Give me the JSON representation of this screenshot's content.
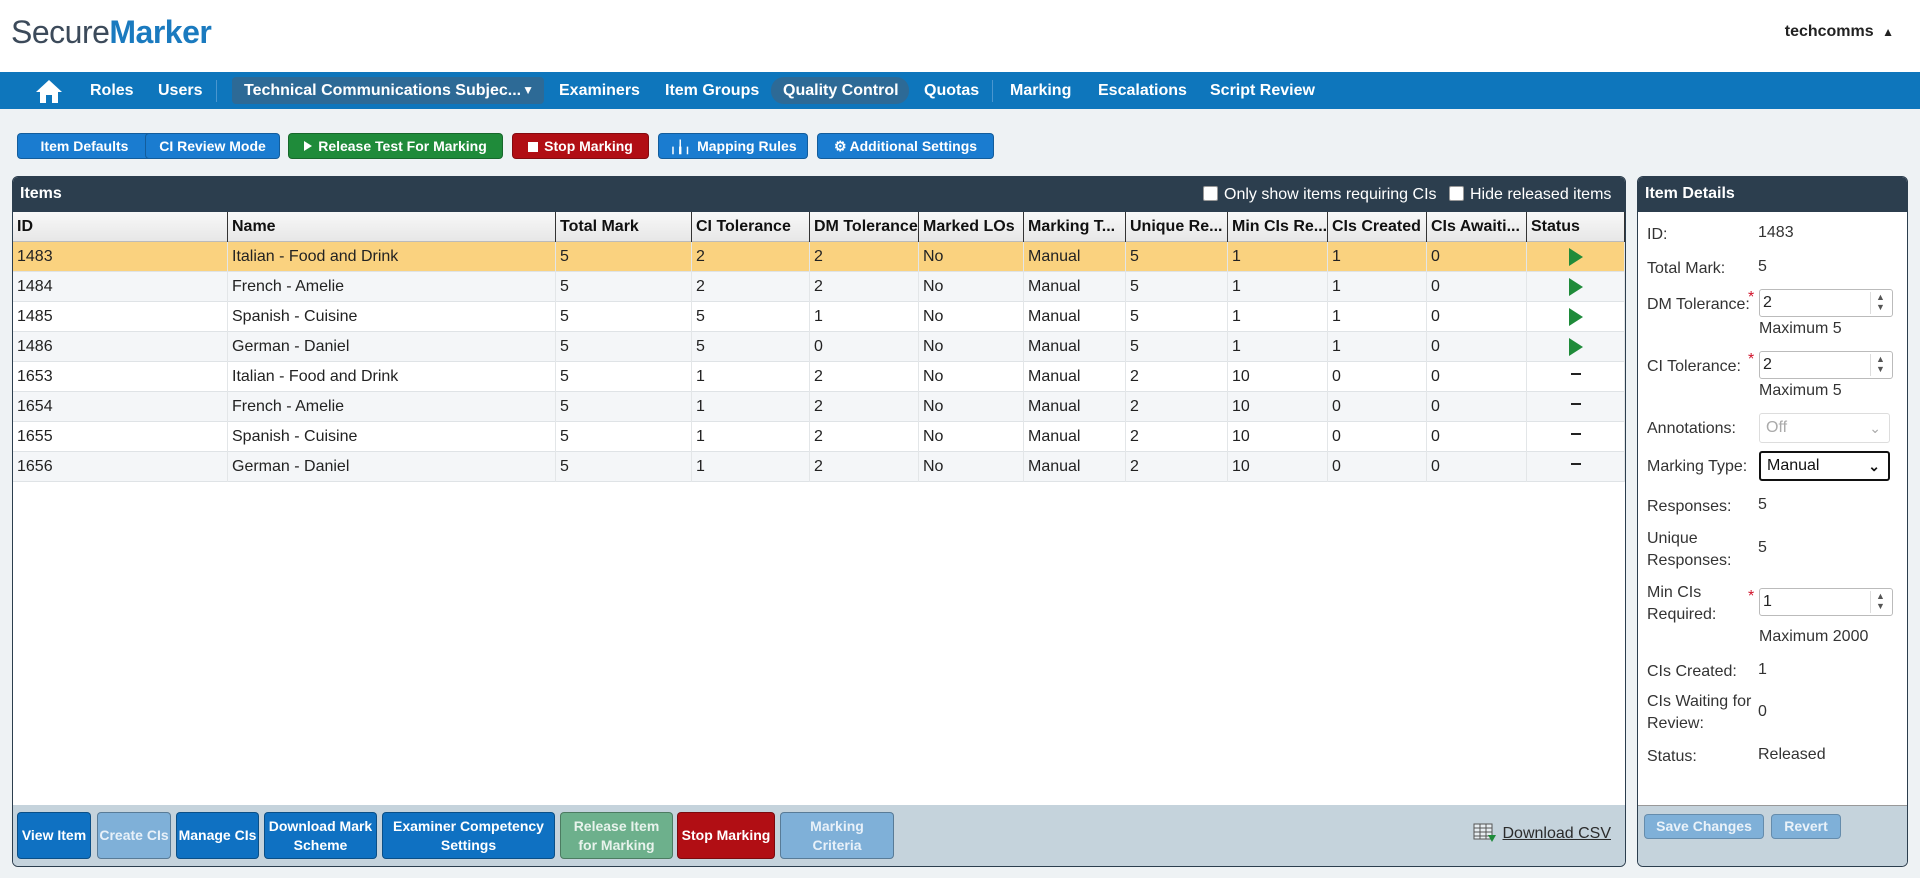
{
  "header": {
    "logo_part1": "Secure",
    "logo_part2": "Marker",
    "username": "techcomms",
    "username_caret": "▲"
  },
  "nav": {
    "roles": "Roles",
    "users": "Users",
    "subject": "Technical Communications Subjec...",
    "examiners": "Examiners",
    "item_groups": "Item Groups",
    "quality_control": "Quality Control",
    "quotas": "Quotas",
    "marking": "Marking",
    "escalations": "Escalations",
    "script_review": "Script Review"
  },
  "toolbar": {
    "item_defaults": "Item Defaults",
    "ci_review_mode": "CI Review Mode",
    "release_test": "Release Test For Marking",
    "stop_marking": "Stop Marking",
    "mapping_rules": "Mapping Rules",
    "additional_settings": "Additional Settings"
  },
  "items_panel": {
    "title": "Items",
    "only_requiring_cis": "Only show items requiring CIs",
    "hide_released": "Hide released items",
    "columns": [
      "ID",
      "Name",
      "Total Mark",
      "CI Tolerance",
      "DM Tolerance",
      "Marked LOs",
      "Marking T...",
      "Unique Re...",
      "Min CIs Re...",
      "CIs Created",
      "CIs Awaiti...",
      "Status"
    ],
    "rows": [
      {
        "id": "1483",
        "name": "Italian - Food and Drink",
        "total": "5",
        "ci_tol": "2",
        "dm_tol": "2",
        "marked_los": "No",
        "marking_type": "Manual",
        "unique": "5",
        "min_cis": "1",
        "cis_created": "1",
        "cis_awaiting": "0",
        "status": "released"
      },
      {
        "id": "1484",
        "name": "French - Amelie",
        "total": "5",
        "ci_tol": "2",
        "dm_tol": "2",
        "marked_los": "No",
        "marking_type": "Manual",
        "unique": "5",
        "min_cis": "1",
        "cis_created": "1",
        "cis_awaiting": "0",
        "status": "released"
      },
      {
        "id": "1485",
        "name": "Spanish - Cuisine",
        "total": "5",
        "ci_tol": "5",
        "dm_tol": "1",
        "marked_los": "No",
        "marking_type": "Manual",
        "unique": "5",
        "min_cis": "1",
        "cis_created": "1",
        "cis_awaiting": "0",
        "status": "released"
      },
      {
        "id": "1486",
        "name": "German - Daniel",
        "total": "5",
        "ci_tol": "5",
        "dm_tol": "0",
        "marked_los": "No",
        "marking_type": "Manual",
        "unique": "5",
        "min_cis": "1",
        "cis_created": "1",
        "cis_awaiting": "0",
        "status": "released"
      },
      {
        "id": "1653",
        "name": "Italian - Food and Drink",
        "total": "5",
        "ci_tol": "1",
        "dm_tol": "2",
        "marked_los": "No",
        "marking_type": "Manual",
        "unique": "2",
        "min_cis": "10",
        "cis_created": "0",
        "cis_awaiting": "0",
        "status": "not-released"
      },
      {
        "id": "1654",
        "name": "French - Amelie",
        "total": "5",
        "ci_tol": "1",
        "dm_tol": "2",
        "marked_los": "No",
        "marking_type": "Manual",
        "unique": "2",
        "min_cis": "10",
        "cis_created": "0",
        "cis_awaiting": "0",
        "status": "not-released"
      },
      {
        "id": "1655",
        "name": "Spanish - Cuisine",
        "total": "5",
        "ci_tol": "1",
        "dm_tol": "2",
        "marked_los": "No",
        "marking_type": "Manual",
        "unique": "2",
        "min_cis": "10",
        "cis_created": "0",
        "cis_awaiting": "0",
        "status": "not-released"
      },
      {
        "id": "1656",
        "name": "German - Daniel",
        "total": "5",
        "ci_tol": "1",
        "dm_tol": "2",
        "marked_los": "No",
        "marking_type": "Manual",
        "unique": "2",
        "min_cis": "10",
        "cis_created": "0",
        "cis_awaiting": "0",
        "status": "not-released"
      }
    ],
    "selected_row": "1483",
    "footer": {
      "view_item": "View Item",
      "create_cis": "Create CIs",
      "manage_cis": "Manage CIs",
      "download_mark_scheme_1": "Download Mark",
      "download_mark_scheme_2": "Scheme",
      "examiner_competency_1": "Examiner Competency",
      "examiner_competency_2": "Settings",
      "release_item_1": "Release Item",
      "release_item_2": "for Marking",
      "stop_marking": "Stop Marking",
      "marking_criteria_1": "Marking",
      "marking_criteria_2": "Criteria",
      "download_csv": "Download CSV"
    }
  },
  "details": {
    "title": "Item Details",
    "id_label": "ID:",
    "id_value": "1483",
    "total_mark_label": "Total Mark:",
    "total_mark_value": "5",
    "dm_tol_label": "DM Tolerance:",
    "dm_tol_value": "2",
    "dm_tol_hint": "Maximum 5",
    "ci_tol_label": "CI Tolerance:",
    "ci_tol_value": "2",
    "ci_tol_hint": "Maximum 5",
    "annotations_label": "Annotations:",
    "annotations_value": "Off",
    "marking_type_label": "Marking Type:",
    "marking_type_value": "Manual",
    "responses_label": "Responses:",
    "responses_value": "5",
    "unique_label_1": "Unique",
    "unique_label_2": "Responses:",
    "unique_value": "5",
    "min_cis_label_1": "Min CIs",
    "min_cis_label_2": "Required:",
    "min_cis_value": "1",
    "min_cis_hint": "Maximum 2000",
    "cis_created_label": "CIs Created:",
    "cis_created_value": "1",
    "cis_waiting_label_1": "CIs Waiting for",
    "cis_waiting_label_2": "Review:",
    "cis_waiting_value": "0",
    "status_label": "Status:",
    "status_value": "Released",
    "save_changes": "Save Changes",
    "revert": "Revert"
  }
}
